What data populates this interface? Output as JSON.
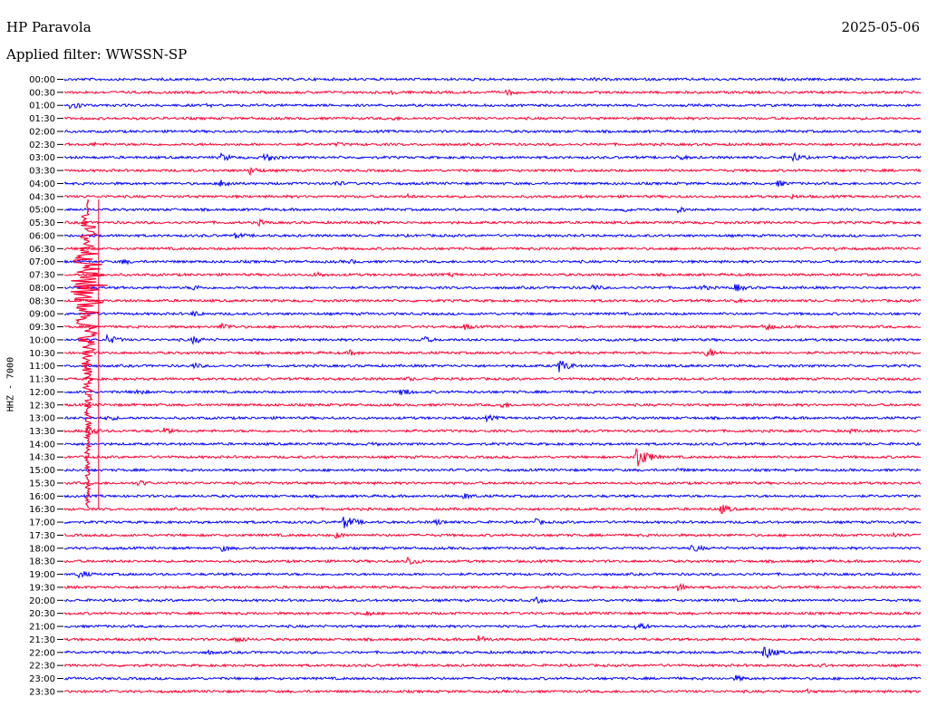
{
  "header": {
    "station": "HP Paravola",
    "date": "2025-05-06",
    "filter": "Applied filter: WWSSN-SP"
  },
  "chart_data": {
    "type": "line",
    "title": "HP Paravola",
    "ylabel": "HHZ - 7000",
    "row_labels": [
      "00:00",
      "00:30",
      "01:00",
      "01:30",
      "02:00",
      "02:30",
      "03:00",
      "03:30",
      "04:00",
      "04:30",
      "05:00",
      "05:30",
      "06:00",
      "06:30",
      "07:00",
      "07:30",
      "08:00",
      "08:30",
      "09:00",
      "09:30",
      "10:00",
      "10:30",
      "11:00",
      "11:30",
      "12:00",
      "12:30",
      "13:00",
      "13:30",
      "14:00",
      "14:30",
      "15:00",
      "15:30",
      "16:00",
      "16:30",
      "17:00",
      "17:30",
      "18:00",
      "18:30",
      "19:00",
      "19:30",
      "20:00",
      "20:30",
      "21:00",
      "21:30",
      "22:00",
      "22:30",
      "23:00",
      "23:30"
    ],
    "x_range_minutes": [
      0,
      30
    ],
    "colors": [
      "#0000ff",
      "#ff0033"
    ],
    "events": [
      {
        "row": 0,
        "minute": 18.5,
        "amp": 2.5
      },
      {
        "row": 1,
        "minute": 11.5,
        "amp": 3
      },
      {
        "row": 1,
        "minute": 15.5,
        "amp": 4
      },
      {
        "row": 2,
        "minute": 0.2,
        "amp": 6
      },
      {
        "row": 2,
        "minute": 5.0,
        "amp": 2.5
      },
      {
        "row": 3,
        "minute": 11.5,
        "amp": 3
      },
      {
        "row": 4,
        "minute": 7.5,
        "amp": 2
      },
      {
        "row": 5,
        "minute": 1.0,
        "amp": 3
      },
      {
        "row": 5,
        "minute": 9.5,
        "amp": 3
      },
      {
        "row": 6,
        "minute": 5.5,
        "amp": 5
      },
      {
        "row": 6,
        "minute": 7.0,
        "amp": 6
      },
      {
        "row": 6,
        "minute": 21.5,
        "amp": 4
      },
      {
        "row": 6,
        "minute": 25.5,
        "amp": 6
      },
      {
        "row": 7,
        "minute": 6.5,
        "amp": 5
      },
      {
        "row": 8,
        "minute": 5.5,
        "amp": 6
      },
      {
        "row": 8,
        "minute": 9.5,
        "amp": 4
      },
      {
        "row": 8,
        "minute": 25.0,
        "amp": 4
      },
      {
        "row": 9,
        "minute": 12.0,
        "amp": 3
      },
      {
        "row": 9,
        "minute": 25.5,
        "amp": 3
      },
      {
        "row": 10,
        "minute": 19.5,
        "amp": 4
      },
      {
        "row": 10,
        "minute": 21.5,
        "amp": 4
      },
      {
        "row": 11,
        "minute": 6.8,
        "amp": 4
      },
      {
        "row": 11,
        "minute": 10.8,
        "amp": 3
      },
      {
        "row": 12,
        "minute": 6.0,
        "amp": 4
      },
      {
        "row": 13,
        "minute": 27.0,
        "amp": 3
      },
      {
        "row": 14,
        "minute": 2.0,
        "amp": 4
      },
      {
        "row": 14,
        "minute": 10.0,
        "amp": 3
      },
      {
        "row": 15,
        "minute": 8.8,
        "amp": 4
      },
      {
        "row": 15,
        "minute": 13.5,
        "amp": 3
      },
      {
        "row": 16,
        "minute": 4.5,
        "amp": 4
      },
      {
        "row": 16,
        "minute": 18.5,
        "amp": 4
      },
      {
        "row": 16,
        "minute": 22.3,
        "amp": 4
      },
      {
        "row": 16,
        "minute": 23.5,
        "amp": 5
      },
      {
        "row": 17,
        "minute": 23.5,
        "amp": 3
      },
      {
        "row": 18,
        "minute": 4.5,
        "amp": 4
      },
      {
        "row": 19,
        "minute": 5.5,
        "amp": 5
      },
      {
        "row": 19,
        "minute": 14.0,
        "amp": 4
      },
      {
        "row": 19,
        "minute": 24.5,
        "amp": 5
      },
      {
        "row": 20,
        "minute": 1.5,
        "amp": 6
      },
      {
        "row": 20,
        "minute": 4.5,
        "amp": 5
      },
      {
        "row": 20,
        "minute": 12.5,
        "amp": 5
      },
      {
        "row": 21,
        "minute": 10.0,
        "amp": 4
      },
      {
        "row": 21,
        "minute": 22.5,
        "amp": 6
      },
      {
        "row": 22,
        "minute": 4.5,
        "amp": 4
      },
      {
        "row": 22,
        "minute": 17.3,
        "amp": 8
      },
      {
        "row": 23,
        "minute": 12.0,
        "amp": 3
      },
      {
        "row": 24,
        "minute": 2.5,
        "amp": 4
      },
      {
        "row": 24,
        "minute": 11.8,
        "amp": 5
      },
      {
        "row": 25,
        "minute": 15.3,
        "amp": 4
      },
      {
        "row": 26,
        "minute": 1.5,
        "amp": 4
      },
      {
        "row": 26,
        "minute": 14.8,
        "amp": 4
      },
      {
        "row": 27,
        "minute": 0.8,
        "amp": 6
      },
      {
        "row": 27,
        "minute": 3.5,
        "amp": 4
      },
      {
        "row": 27,
        "minute": 10.0,
        "amp": 3
      },
      {
        "row": 27,
        "minute": 27.5,
        "amp": 3
      },
      {
        "row": 28,
        "minute": 10.8,
        "amp": 3
      },
      {
        "row": 29,
        "minute": 20.0,
        "amp": 14
      },
      {
        "row": 30,
        "minute": 21.5,
        "amp": 3
      },
      {
        "row": 31,
        "minute": 2.6,
        "amp": 4
      },
      {
        "row": 32,
        "minute": 14.0,
        "amp": 4
      },
      {
        "row": 33,
        "minute": 23.0,
        "amp": 6
      },
      {
        "row": 34,
        "minute": 9.8,
        "amp": 8
      },
      {
        "row": 34,
        "minute": 13.0,
        "amp": 4
      },
      {
        "row": 34,
        "minute": 16.5,
        "amp": 4
      },
      {
        "row": 35,
        "minute": 9.5,
        "amp": 4
      },
      {
        "row": 35,
        "minute": 29.0,
        "amp": 4
      },
      {
        "row": 36,
        "minute": 5.5,
        "amp": 4
      },
      {
        "row": 36,
        "minute": 22.0,
        "amp": 5
      },
      {
        "row": 37,
        "minute": 12.0,
        "amp": 6
      },
      {
        "row": 38,
        "minute": 0.5,
        "amp": 5
      },
      {
        "row": 39,
        "minute": 21.5,
        "amp": 5
      },
      {
        "row": 40,
        "minute": 16.5,
        "amp": 4
      },
      {
        "row": 41,
        "minute": 10.5,
        "amp": 4
      },
      {
        "row": 42,
        "minute": 20.0,
        "amp": 6
      },
      {
        "row": 43,
        "minute": 6.0,
        "amp": 5
      },
      {
        "row": 43,
        "minute": 14.5,
        "amp": 5
      },
      {
        "row": 44,
        "minute": 5.0,
        "amp": 3
      },
      {
        "row": 44,
        "minute": 24.5,
        "amp": 8
      },
      {
        "row": 45,
        "minute": 26.5,
        "amp": 3
      },
      {
        "row": 46,
        "minute": 23.5,
        "amp": 4
      },
      {
        "row": 47,
        "minute": 26.0,
        "amp": 3
      }
    ],
    "major_quake": {
      "start_row": 12,
      "end_row": 33,
      "minute": 0.5,
      "peak_row": 16
    }
  }
}
